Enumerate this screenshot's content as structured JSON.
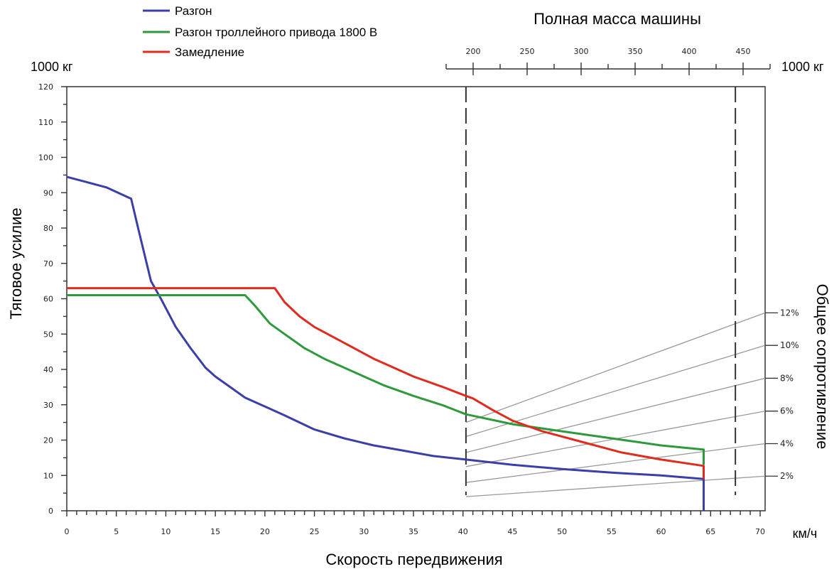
{
  "chart_data": {
    "type": "line",
    "xlabel": "Скорость передвижения",
    "ylabel": "Тяговое усилие",
    "xunit": "км/ч",
    "yunit_left": "1000 кг",
    "yunit_right": "1000 кг",
    "right_axis_label": "Общее сопротивление",
    "top_axis_label": "Полная масса машины",
    "xlim": [
      0,
      70
    ],
    "ylim": [
      0,
      120
    ],
    "x_major_ticks": [
      0,
      5,
      10,
      15,
      20,
      25,
      30,
      35,
      40,
      45,
      50,
      55,
      60,
      65,
      70
    ],
    "x_minor_step": 1,
    "y_major_ticks": [
      0,
      10,
      20,
      30,
      40,
      50,
      60,
      70,
      80,
      90,
      100,
      110,
      120
    ],
    "y_minor_step": 5,
    "top_axis": {
      "ticks": [
        200,
        250,
        300,
        350,
        400,
        450
      ],
      "minor_step": 25,
      "range": [
        175,
        475
      ]
    },
    "legend": {
      "placement": "top-left"
    },
    "series": [
      {
        "name": "Разгон",
        "color": "#3b3fa8",
        "points": [
          [
            0,
            94.5
          ],
          [
            2,
            93
          ],
          [
            4,
            91.5
          ],
          [
            6.5,
            88.3
          ],
          [
            7.2,
            80
          ],
          [
            8.5,
            65
          ],
          [
            9.5,
            60
          ],
          [
            11,
            52
          ],
          [
            12.5,
            46
          ],
          [
            14,
            40.5
          ],
          [
            15,
            38
          ],
          [
            16.5,
            35
          ],
          [
            18,
            32
          ],
          [
            20,
            29.5
          ],
          [
            22,
            27
          ],
          [
            25,
            23
          ],
          [
            28,
            20.5
          ],
          [
            31,
            18.5
          ],
          [
            34,
            17
          ],
          [
            37,
            15.5
          ],
          [
            40.3,
            14.5
          ],
          [
            45,
            13
          ],
          [
            50,
            11.8
          ],
          [
            55,
            10.8
          ],
          [
            60,
            10
          ],
          [
            64.3,
            9
          ],
          [
            64.3,
            0
          ]
        ]
      },
      {
        "name": "Разгон троллейного привода 1800 В",
        "color": "#2e9a3c",
        "points": [
          [
            0,
            61
          ],
          [
            18,
            61
          ],
          [
            19,
            58
          ],
          [
            20.5,
            53
          ],
          [
            22,
            50
          ],
          [
            24,
            46
          ],
          [
            26,
            43
          ],
          [
            28,
            40.5
          ],
          [
            30,
            38
          ],
          [
            32,
            35.5
          ],
          [
            35,
            32.5
          ],
          [
            38,
            29.8
          ],
          [
            40.3,
            27.3
          ],
          [
            45,
            24.5
          ],
          [
            50,
            22.5
          ],
          [
            55,
            20.5
          ],
          [
            60,
            18.5
          ],
          [
            64.3,
            17.3
          ],
          [
            64.3,
            13
          ]
        ]
      },
      {
        "name": "Замедление",
        "color": "#e02b1f",
        "points": [
          [
            0,
            63
          ],
          [
            21,
            63
          ],
          [
            22,
            59
          ],
          [
            23.5,
            55
          ],
          [
            25,
            52
          ],
          [
            27,
            49
          ],
          [
            29,
            46
          ],
          [
            31,
            43
          ],
          [
            33,
            40.5
          ],
          [
            35,
            38
          ],
          [
            38,
            35
          ],
          [
            40.3,
            32.5
          ],
          [
            41,
            31.8
          ],
          [
            43,
            28.5
          ],
          [
            45,
            25.5
          ],
          [
            48,
            22.5
          ],
          [
            52,
            19.5
          ],
          [
            56,
            16.5
          ],
          [
            60,
            14.5
          ],
          [
            64.3,
            12.7
          ],
          [
            64.3,
            9
          ]
        ]
      }
    ],
    "vertical_dashed_lines_x": [
      40.3,
      67.5
    ],
    "grade_lines": [
      {
        "label": "2%",
        "start_y": 4,
        "end_y": 9.8
      },
      {
        "label": "4%",
        "start_y": 8,
        "end_y": 19
      },
      {
        "label": "6%",
        "start_y": 12.5,
        "end_y": 28.2
      },
      {
        "label": "8%",
        "start_y": 16.5,
        "end_y": 37.5
      },
      {
        "label": "10%",
        "start_y": 21,
        "end_y": 46.8
      },
      {
        "label": "12%",
        "start_y": 25,
        "end_y": 56
      }
    ]
  }
}
